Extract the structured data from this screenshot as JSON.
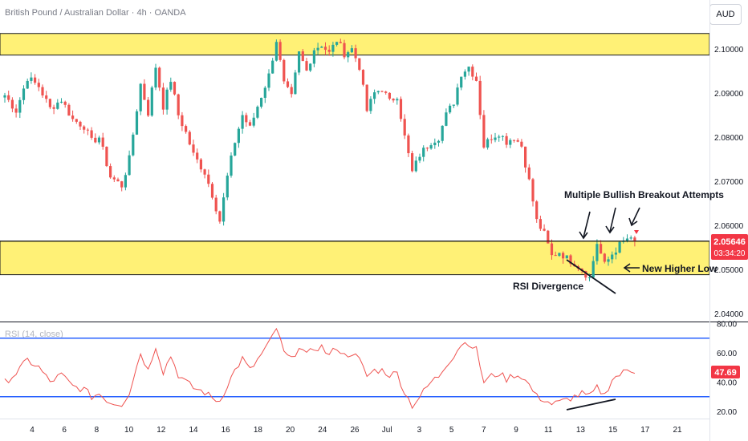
{
  "header": {
    "title": "British Pound / Australian Dollar · 4h · OANDA",
    "currency": "AUD"
  },
  "price_badge": {
    "price": "2.05646",
    "countdown": "03:34:20",
    "color": "#f23645"
  },
  "rsi_badge": {
    "value": "47.69",
    "color": "#f23645"
  },
  "indicator_label": "RSI (14, close)",
  "annotations": {
    "breakout": "Multiple Bullish Breakout Attempts",
    "higher_low": "New Higher Low",
    "divergence": "RSI Divergence"
  },
  "colors": {
    "bull": "#26a69a",
    "bear": "#ef5350",
    "zone": "#fff176",
    "rsi_line": "#ef5350",
    "rsi_levels": "#2962ff",
    "price_line": "#000000"
  },
  "chart_data": [
    {
      "type": "candlestick",
      "title": "British Pound / Australian Dollar · 4h · OANDA",
      "x_tick_labels": [
        "4",
        "6",
        "8",
        "10",
        "12",
        "14",
        "16",
        "18",
        "20",
        "24",
        "26",
        "Jul",
        "3",
        "5",
        "7",
        "9",
        "11",
        "13",
        "15",
        "17",
        "21"
      ],
      "y_tick_labels": [
        "2.04000",
        "2.05000",
        "2.06000",
        "2.07000",
        "2.08000",
        "2.09000",
        "2.10000"
      ],
      "ylim": [
        2.0365,
        2.1098
      ],
      "zones": [
        {
          "name": "resistance",
          "from": 2.0986,
          "to": 2.1035
        },
        {
          "name": "support",
          "from": 2.0488,
          "to": 2.0564
        }
      ],
      "close_anchors": [
        [
          0,
          2.0895
        ],
        [
          3,
          2.086
        ],
        [
          6,
          2.0935
        ],
        [
          9,
          2.0915
        ],
        [
          12,
          2.0865
        ],
        [
          15,
          2.0885
        ],
        [
          18,
          2.084
        ],
        [
          21,
          2.0825
        ],
        [
          23,
          2.079
        ],
        [
          25,
          2.08
        ],
        [
          28,
          2.071
        ],
        [
          31,
          2.069
        ],
        [
          33,
          2.075
        ],
        [
          36,
          2.092
        ],
        [
          38,
          2.0855
        ],
        [
          40,
          2.096
        ],
        [
          42,
          2.087
        ],
        [
          44,
          2.093
        ],
        [
          46,
          2.085
        ],
        [
          48,
          2.081
        ],
        [
          50,
          2.076
        ],
        [
          53,
          2.072
        ],
        [
          55,
          2.067
        ],
        [
          57,
          2.061
        ],
        [
          59,
          2.071
        ],
        [
          61,
          2.079
        ],
        [
          63,
          2.085
        ],
        [
          65,
          2.082
        ],
        [
          67,
          2.087
        ],
        [
          70,
          2.094
        ],
        [
          72,
          2.102
        ],
        [
          74,
          2.092
        ],
        [
          76,
          2.089
        ],
        [
          78,
          2.099
        ],
        [
          80,
          2.095
        ],
        [
          82,
          2.1
        ],
        [
          84,
          2.101
        ],
        [
          86,
          2.099
        ],
        [
          88,
          2.102
        ],
        [
          90,
          2.099
        ],
        [
          92,
          2.1
        ],
        [
          94,
          2.096
        ],
        [
          96,
          2.086
        ],
        [
          98,
          2.09
        ],
        [
          100,
          2.091
        ],
        [
          102,
          2.088
        ],
        [
          104,
          2.0895
        ],
        [
          106,
          2.08
        ],
        [
          108,
          2.072
        ],
        [
          110,
          2.076
        ],
        [
          113,
          2.079
        ],
        [
          115,
          2.08
        ],
        [
          117,
          2.085
        ],
        [
          119,
          2.088
        ],
        [
          121,
          2.0945
        ],
        [
          123,
          2.096
        ],
        [
          125,
          2.093
        ],
        [
          127,
          2.078
        ],
        [
          129,
          2.08
        ],
        [
          131,
          2.081
        ],
        [
          133,
          2.079
        ],
        [
          135,
          2.08
        ],
        [
          137,
          2.078
        ],
        [
          139,
          2.07
        ],
        [
          141,
          2.061
        ],
        [
          143,
          2.058
        ],
        [
          145,
          2.053
        ],
        [
          147,
          2.054
        ],
        [
          149,
          2.0525
        ],
        [
          151,
          2.0515
        ],
        [
          153,
          2.05
        ],
        [
          155,
          2.048
        ],
        [
          157,
          2.056
        ],
        [
          159,
          2.051
        ],
        [
          161,
          2.0535
        ],
        [
          163,
          2.0555
        ],
        [
          165,
          2.057
        ],
        [
          167,
          2.056
        ]
      ],
      "rsi": {
        "label": "RSI (14, close)",
        "y_tick_labels": [
          "20.00",
          "40.00",
          "60.00",
          "80.00"
        ],
        "ylim": [
          16,
          82
        ],
        "levels": [
          30,
          70
        ],
        "last": 47.69,
        "anchors": [
          [
            0,
            40
          ],
          [
            3,
            46
          ],
          [
            6,
            55
          ],
          [
            9,
            50
          ],
          [
            12,
            40
          ],
          [
            15,
            45
          ],
          [
            18,
            37
          ],
          [
            21,
            35
          ],
          [
            23,
            30
          ],
          [
            25,
            32
          ],
          [
            28,
            26
          ],
          [
            31,
            25
          ],
          [
            33,
            33
          ],
          [
            36,
            60
          ],
          [
            38,
            48
          ],
          [
            40,
            65
          ],
          [
            42,
            47
          ],
          [
            44,
            58
          ],
          [
            46,
            45
          ],
          [
            48,
            40
          ],
          [
            50,
            36
          ],
          [
            53,
            33
          ],
          [
            55,
            29
          ],
          [
            57,
            27
          ],
          [
            59,
            38
          ],
          [
            61,
            48
          ],
          [
            63,
            56
          ],
          [
            65,
            48
          ],
          [
            67,
            55
          ],
          [
            70,
            66
          ],
          [
            72,
            77
          ],
          [
            74,
            60
          ],
          [
            76,
            55
          ],
          [
            78,
            65
          ],
          [
            80,
            58
          ],
          [
            82,
            63
          ],
          [
            84,
            64
          ],
          [
            86,
            58
          ],
          [
            88,
            64
          ],
          [
            90,
            58
          ],
          [
            92,
            60
          ],
          [
            94,
            55
          ],
          [
            96,
            44
          ],
          [
            98,
            48
          ],
          [
            100,
            48
          ],
          [
            102,
            45
          ],
          [
            104,
            46
          ],
          [
            106,
            33
          ],
          [
            108,
            24
          ],
          [
            110,
            30
          ],
          [
            113,
            40
          ],
          [
            115,
            44
          ],
          [
            117,
            52
          ],
          [
            119,
            58
          ],
          [
            121,
            66
          ],
          [
            123,
            67
          ],
          [
            125,
            62
          ],
          [
            127,
            40
          ],
          [
            129,
            44
          ],
          [
            131,
            46
          ],
          [
            133,
            42
          ],
          [
            135,
            45
          ],
          [
            137,
            44
          ],
          [
            139,
            38
          ],
          [
            141,
            30
          ],
          [
            143,
            28
          ],
          [
            145,
            25
          ],
          [
            147,
            26
          ],
          [
            149,
            28
          ],
          [
            151,
            30
          ],
          [
            153,
            32
          ],
          [
            155,
            30
          ],
          [
            157,
            36
          ],
          [
            159,
            31
          ],
          [
            161,
            42
          ],
          [
            163,
            45
          ],
          [
            165,
            48
          ],
          [
            167,
            47.7
          ]
        ]
      }
    }
  ]
}
